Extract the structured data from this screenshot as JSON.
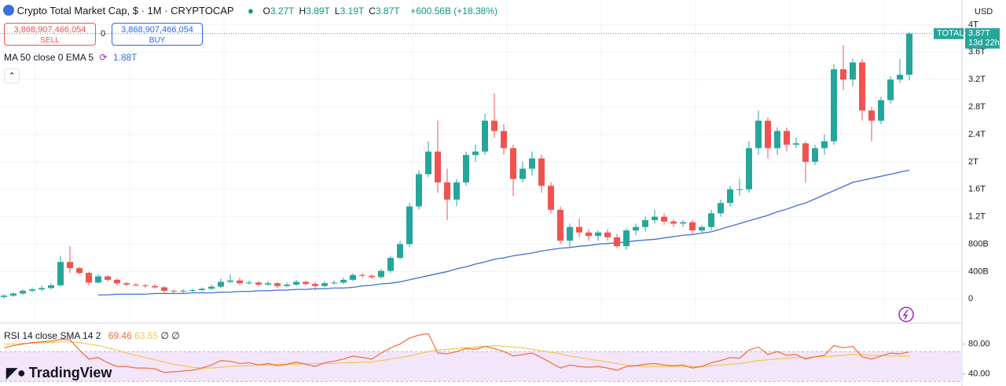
{
  "chart_data": [
    {
      "type": "candlestick",
      "title": "Crypto Total Market Cap, $ · 1M · CRYPTOCAP",
      "unit": "USD",
      "up_color": "#26a69a",
      "down_color": "#ef5350",
      "open": [
        0.03,
        0.05,
        0.08,
        0.12,
        0.14,
        0.16,
        0.2,
        0.54,
        0.45,
        0.38,
        0.24,
        0.33,
        0.28,
        0.23,
        0.21,
        0.2,
        0.19,
        0.17,
        0.12,
        0.11,
        0.12,
        0.13,
        0.15,
        0.18,
        0.25,
        0.27,
        0.23,
        0.24,
        0.21,
        0.23,
        0.19,
        0.21,
        0.25,
        0.22,
        0.19,
        0.23,
        0.24,
        0.28,
        0.35,
        0.34,
        0.32,
        0.41,
        0.6,
        0.8,
        1.35,
        1.82,
        2.15,
        1.7,
        1.45,
        1.7,
        2.1,
        2.15,
        2.6,
        2.45,
        2.2,
        1.75,
        1.9,
        2.05,
        1.65,
        1.3,
        0.85,
        1.05,
        0.97,
        0.92,
        0.97,
        0.9,
        0.77,
        1.0,
        1.05,
        1.15,
        1.2,
        1.13,
        1.1,
        1.12,
        1.0,
        1.05,
        1.25,
        1.4,
        1.6,
        1.6,
        2.2,
        2.6,
        2.2,
        2.45,
        2.25,
        2.27,
        2.0,
        2.2,
        2.3,
        3.35,
        3.2,
        3.45,
        2.75,
        2.6,
        2.9,
        3.2,
        3.27
      ],
      "high": [
        0.07,
        0.1,
        0.14,
        0.17,
        0.19,
        0.23,
        0.63,
        0.77,
        0.47,
        0.4,
        0.36,
        0.35,
        0.3,
        0.25,
        0.23,
        0.22,
        0.21,
        0.19,
        0.14,
        0.14,
        0.15,
        0.17,
        0.21,
        0.3,
        0.36,
        0.31,
        0.27,
        0.26,
        0.26,
        0.25,
        0.24,
        0.28,
        0.27,
        0.25,
        0.26,
        0.27,
        0.31,
        0.38,
        0.38,
        0.36,
        0.44,
        0.63,
        0.85,
        1.4,
        1.88,
        2.3,
        2.6,
        1.9,
        1.75,
        2.15,
        2.25,
        2.7,
        3.0,
        2.55,
        2.25,
        2.0,
        2.15,
        2.1,
        1.7,
        1.35,
        1.1,
        1.17,
        1.02,
        1.0,
        1.02,
        0.95,
        1.03,
        1.1,
        1.2,
        1.3,
        1.25,
        1.16,
        1.15,
        1.15,
        1.08,
        1.3,
        1.45,
        1.65,
        1.75,
        2.3,
        2.75,
        2.65,
        2.5,
        2.5,
        2.35,
        2.3,
        2.25,
        2.4,
        3.42,
        3.7,
        3.5,
        3.5,
        2.8,
        2.95,
        3.25,
        3.5,
        3.89
      ],
      "low": [
        0.01,
        0.03,
        0.06,
        0.1,
        0.12,
        0.14,
        0.18,
        0.38,
        0.36,
        0.2,
        0.22,
        0.25,
        0.2,
        0.19,
        0.18,
        0.16,
        0.15,
        0.09,
        0.08,
        0.09,
        0.1,
        0.12,
        0.14,
        0.16,
        0.23,
        0.2,
        0.21,
        0.18,
        0.19,
        0.16,
        0.17,
        0.19,
        0.19,
        0.12,
        0.17,
        0.21,
        0.22,
        0.26,
        0.31,
        0.29,
        0.3,
        0.38,
        0.58,
        0.76,
        1.3,
        1.78,
        1.55,
        1.15,
        1.35,
        1.65,
        2.0,
        2.1,
        2.35,
        2.1,
        1.5,
        1.7,
        1.8,
        1.55,
        1.25,
        0.8,
        0.75,
        0.9,
        0.85,
        0.85,
        0.85,
        0.74,
        0.72,
        0.93,
        0.98,
        1.1,
        1.08,
        1.05,
        1.05,
        0.95,
        0.96,
        1.0,
        1.2,
        1.35,
        1.5,
        1.55,
        2.1,
        2.05,
        2.1,
        2.15,
        2.2,
        1.7,
        1.95,
        2.1,
        2.25,
        3.05,
        3.1,
        2.6,
        2.3,
        2.55,
        2.85,
        3.15,
        3.19
      ],
      "close": [
        0.05,
        0.08,
        0.12,
        0.14,
        0.16,
        0.2,
        0.54,
        0.45,
        0.38,
        0.24,
        0.33,
        0.28,
        0.23,
        0.21,
        0.2,
        0.19,
        0.17,
        0.12,
        0.11,
        0.12,
        0.13,
        0.15,
        0.18,
        0.25,
        0.27,
        0.23,
        0.24,
        0.21,
        0.23,
        0.19,
        0.21,
        0.25,
        0.22,
        0.19,
        0.23,
        0.24,
        0.28,
        0.35,
        0.34,
        0.32,
        0.41,
        0.6,
        0.8,
        1.35,
        1.82,
        2.15,
        1.7,
        1.45,
        1.7,
        2.1,
        2.15,
        2.6,
        2.45,
        2.2,
        1.75,
        1.9,
        2.05,
        1.65,
        1.3,
        0.85,
        1.05,
        0.97,
        0.92,
        0.97,
        0.9,
        0.77,
        1.0,
        1.05,
        1.15,
        1.2,
        1.13,
        1.1,
        1.12,
        1.0,
        1.05,
        1.25,
        1.4,
        1.6,
        1.6,
        2.2,
        2.6,
        2.2,
        2.45,
        2.25,
        2.27,
        2.0,
        2.2,
        2.3,
        3.35,
        3.2,
        3.45,
        2.75,
        2.6,
        2.9,
        3.2,
        3.27,
        3.87
      ],
      "ylim": [
        -0.34,
        4.36
      ],
      "yticks": [
        0,
        {
          "value": 0.4,
          "label": "400B"
        },
        {
          "value": 0.8,
          "label": "800B"
        },
        {
          "value": 1.2,
          "label": "1.2T"
        },
        {
          "value": 1.6,
          "label": "1.6T"
        },
        {
          "value": 2,
          "label": "2T"
        },
        {
          "value": 2.4,
          "label": "2.4T"
        },
        {
          "value": 2.8,
          "label": "2.8T"
        },
        {
          "value": 3.2,
          "label": "3.2T"
        },
        {
          "value": 3.6,
          "label": "3.6T"
        },
        {
          "value": 4,
          "label": "4T"
        }
      ],
      "grid": true,
      "last_label": {
        "name": "TOTAL",
        "value_label": "3.87T",
        "countdown": "13d 22h"
      },
      "overlays": [
        {
          "name": "MA 50 close 0 EMA 5",
          "color": "#3d6fd8",
          "value_label": "1.88T",
          "values": [
            null,
            null,
            null,
            null,
            null,
            null,
            null,
            null,
            null,
            null,
            0.06,
            0.06,
            0.07,
            0.07,
            0.07,
            0.07,
            0.08,
            0.08,
            0.08,
            0.08,
            0.09,
            0.09,
            0.09,
            0.1,
            0.1,
            0.11,
            0.11,
            0.12,
            0.12,
            0.13,
            0.13,
            0.14,
            0.14,
            0.15,
            0.15,
            0.16,
            0.16,
            0.17,
            0.19,
            0.2,
            0.22,
            0.23,
            0.25,
            0.28,
            0.31,
            0.34,
            0.37,
            0.4,
            0.44,
            0.47,
            0.51,
            0.54,
            0.58,
            0.6,
            0.63,
            0.65,
            0.67,
            0.7,
            0.72,
            0.74,
            0.75,
            0.77,
            0.78,
            0.8,
            0.81,
            0.82,
            0.83,
            0.85,
            0.86,
            0.87,
            0.89,
            0.91,
            0.93,
            0.94,
            0.96,
            0.98,
            1.02,
            1.06,
            1.1,
            1.14,
            1.18,
            1.22,
            1.27,
            1.31,
            1.36,
            1.4,
            1.46,
            1.52,
            1.58,
            1.64,
            1.7,
            1.73,
            1.76,
            1.79,
            1.82,
            1.85,
            1.88
          ]
        }
      ]
    },
    {
      "type": "line",
      "title": "RSI 14 close SMA 14 2",
      "ylim": [
        25,
        107
      ],
      "yticks": [
        {
          "value": 80,
          "label": "80.00"
        },
        {
          "value": 40,
          "label": "40.00"
        }
      ],
      "band": [
        30,
        70
      ],
      "band_color": "#f3e5fa",
      "extra_labels": [
        "∅",
        "∅"
      ],
      "series": [
        {
          "color": "#f26b38",
          "values": [
            75,
            78,
            80,
            82,
            83,
            84,
            86,
            86,
            72,
            60,
            62,
            55,
            50,
            50,
            48,
            48,
            47,
            42,
            43,
            44,
            45,
            48,
            52,
            58,
            57,
            54,
            55,
            52,
            54,
            51,
            53,
            56,
            53,
            50,
            55,
            57,
            60,
            64,
            62,
            60,
            68,
            75,
            80,
            88,
            92,
            94,
            68,
            67,
            70,
            74,
            73,
            77,
            74,
            70,
            64,
            66,
            68,
            62,
            55,
            48,
            52,
            50,
            49,
            50,
            48,
            45,
            50,
            51,
            53,
            54,
            52,
            51,
            52,
            48,
            50,
            55,
            58,
            62,
            61,
            72,
            76,
            66,
            70,
            65,
            66,
            60,
            63,
            65,
            78,
            75,
            77,
            63,
            60,
            64,
            68,
            67,
            69.46
          ]
        },
        {
          "color": "#f2c84b",
          "values": [
            80,
            80,
            81,
            81,
            82,
            82,
            83,
            83,
            82,
            80,
            78,
            75,
            72,
            68,
            65,
            62,
            59,
            56,
            53,
            51,
            49,
            48,
            48,
            49,
            50,
            51,
            51,
            52,
            52,
            53,
            53,
            53,
            54,
            54,
            54,
            54,
            55,
            55,
            56,
            56,
            58,
            60,
            62,
            64,
            67,
            70,
            72,
            73,
            74,
            75,
            76,
            77,
            78,
            77,
            76,
            75,
            73,
            71,
            69,
            67,
            64,
            62,
            60,
            58,
            56,
            54,
            52,
            51,
            50,
            50,
            50,
            50,
            50,
            50,
            50,
            51,
            52,
            53,
            54,
            56,
            58,
            59,
            60,
            61,
            62,
            62,
            63,
            63,
            64,
            65,
            66,
            66,
            65,
            65,
            64,
            64,
            63.55
          ]
        }
      ]
    }
  ],
  "ui": {
    "ohlc": [
      {
        "key": "O",
        "value": "3.27T"
      },
      {
        "key": "H",
        "value": "3.89T"
      },
      {
        "key": "L",
        "value": "3.19T"
      },
      {
        "key": "C",
        "value": "3.87T"
      }
    ],
    "change": "+600.56B (+18.38%)",
    "sell": {
      "price": "3,868,907,466,054",
      "label": "SELL"
    },
    "spread": "0",
    "buy": {
      "price": "3,868,907,466,054",
      "label": "BUY"
    },
    "brand": "TradingView"
  }
}
